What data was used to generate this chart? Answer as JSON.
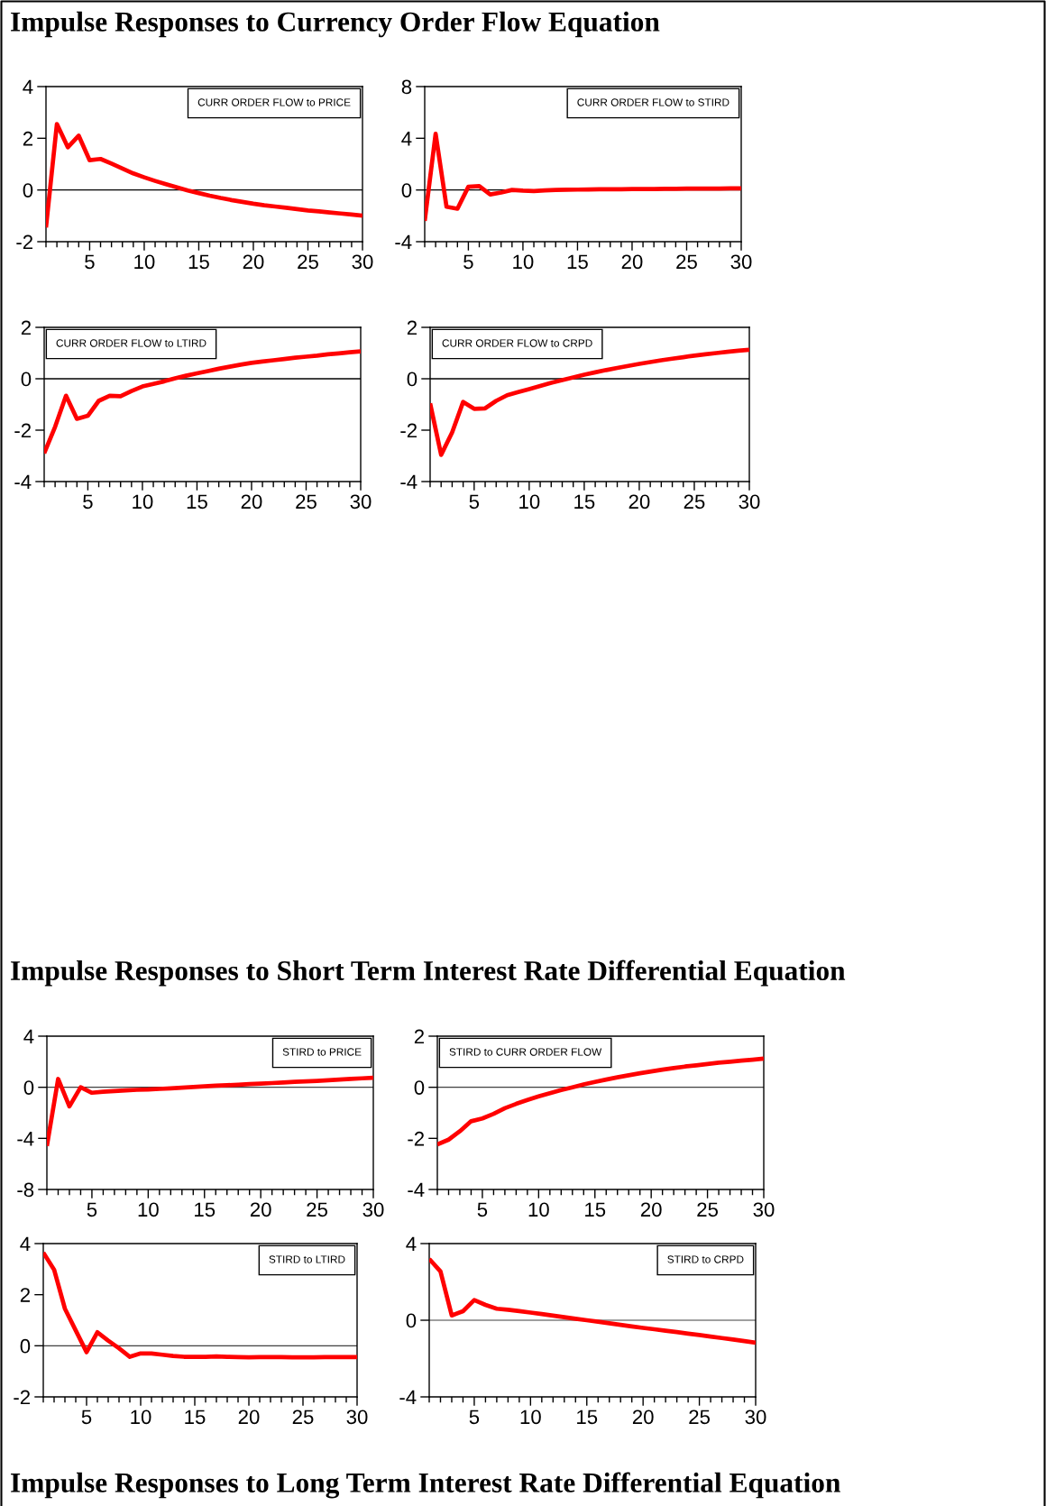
{
  "chart_data": [
    {
      "type": "other",
      "title": "Impulse Responses to Currency Order Flow Equation"
    },
    {
      "type": "line",
      "x": [
        1,
        2,
        3,
        4,
        5,
        6,
        7,
        8,
        9,
        10,
        11,
        12,
        13,
        14,
        15,
        16,
        17,
        18,
        19,
        20,
        21,
        22,
        23,
        24,
        25,
        26,
        27,
        28,
        29,
        30
      ],
      "series": [
        {
          "name": "CURR ORDER FLOW to PRICE",
          "color": "#ff0000",
          "values": [
            -1.45,
            2.55,
            1.65,
            2.1,
            1.15,
            1.2,
            1.02,
            0.83,
            0.64,
            0.49,
            0.35,
            0.22,
            0.1,
            -0.02,
            -0.12,
            -0.22,
            -0.31,
            -0.39,
            -0.46,
            -0.53,
            -0.59,
            -0.64,
            -0.69,
            -0.74,
            -0.79,
            -0.83,
            -0.87,
            -0.91,
            -0.95,
            -0.99
          ]
        }
      ],
      "xlim": [
        1,
        30
      ],
      "xticks": [
        {
          "value": 1,
          "label": null
        },
        {
          "value": 2,
          "label": null
        },
        {
          "value": 3,
          "label": null
        },
        {
          "value": 4,
          "label": null
        },
        5,
        {
          "value": 6,
          "label": null
        },
        {
          "value": 7,
          "label": null
        },
        {
          "value": 8,
          "label": null
        },
        {
          "value": 9,
          "label": null
        },
        10,
        {
          "value": 11,
          "label": null
        },
        {
          "value": 12,
          "label": null
        },
        {
          "value": 13,
          "label": null
        },
        {
          "value": 14,
          "label": null
        },
        15,
        {
          "value": 16,
          "label": null
        },
        {
          "value": 17,
          "label": null
        },
        {
          "value": 18,
          "label": null
        },
        {
          "value": 19,
          "label": null
        },
        20,
        {
          "value": 21,
          "label": null
        },
        {
          "value": 22,
          "label": null
        },
        {
          "value": 23,
          "label": null
        },
        {
          "value": 24,
          "label": null
        },
        25,
        {
          "value": 26,
          "label": null
        },
        {
          "value": 27,
          "label": null
        },
        {
          "value": 28,
          "label": null
        },
        {
          "value": 29,
          "label": null
        },
        30
      ],
      "ylim": [
        -2,
        4
      ],
      "yticks": [
        -2,
        0,
        2,
        4
      ],
      "ref_lines": [
        {
          "axis": "y",
          "value": 0,
          "color": "#000000"
        }
      ],
      "legend": "top right"
    },
    {
      "type": "line",
      "x": [
        1,
        2,
        3,
        4,
        5,
        6,
        7,
        8,
        9,
        10,
        11,
        12,
        13,
        14,
        15,
        16,
        17,
        18,
        19,
        20,
        21,
        22,
        23,
        24,
        25,
        26,
        27,
        28,
        29,
        30
      ],
      "series": [
        {
          "name": "CURR ORDER FLOW to STIRD",
          "color": "#ff0000",
          "values": [
            -2.4,
            4.35,
            -1.3,
            -1.45,
            0.25,
            0.3,
            -0.35,
            -0.2,
            0.0,
            -0.05,
            -0.08,
            -0.03,
            0.0,
            0.02,
            0.03,
            0.04,
            0.05,
            0.06,
            0.06,
            0.07,
            0.08,
            0.08,
            0.09,
            0.09,
            0.1,
            0.1,
            0.11,
            0.11,
            0.12,
            0.12
          ]
        }
      ],
      "xlim": [
        1,
        30
      ],
      "xticks": [
        {
          "value": 1,
          "label": null
        },
        {
          "value": 2,
          "label": null
        },
        {
          "value": 3,
          "label": null
        },
        {
          "value": 4,
          "label": null
        },
        5,
        {
          "value": 6,
          "label": null
        },
        {
          "value": 7,
          "label": null
        },
        {
          "value": 8,
          "label": null
        },
        {
          "value": 9,
          "label": null
        },
        10,
        {
          "value": 11,
          "label": null
        },
        {
          "value": 12,
          "label": null
        },
        {
          "value": 13,
          "label": null
        },
        {
          "value": 14,
          "label": null
        },
        15,
        {
          "value": 16,
          "label": null
        },
        {
          "value": 17,
          "label": null
        },
        {
          "value": 18,
          "label": null
        },
        {
          "value": 19,
          "label": null
        },
        20,
        {
          "value": 21,
          "label": null
        },
        {
          "value": 22,
          "label": null
        },
        {
          "value": 23,
          "label": null
        },
        {
          "value": 24,
          "label": null
        },
        25,
        {
          "value": 26,
          "label": null
        },
        {
          "value": 27,
          "label": null
        },
        {
          "value": 28,
          "label": null
        },
        {
          "value": 29,
          "label": null
        },
        30
      ],
      "ylim": [
        -4,
        8
      ],
      "yticks": [
        -4,
        0,
        4,
        8
      ],
      "ref_lines": [
        {
          "axis": "y",
          "value": 0,
          "color": "#000000"
        }
      ],
      "legend": "top right"
    },
    {
      "type": "line",
      "x": [
        1,
        2,
        3,
        4,
        5,
        6,
        7,
        8,
        9,
        10,
        11,
        12,
        13,
        14,
        15,
        16,
        17,
        18,
        19,
        20,
        21,
        22,
        23,
        24,
        25,
        26,
        27,
        28,
        29,
        30
      ],
      "series": [
        {
          "name": "CURR ORDER FLOW to LTIRD",
          "color": "#ff0000",
          "values": [
            -2.9,
            -1.87,
            -0.66,
            -1.56,
            -1.44,
            -0.86,
            -0.66,
            -0.68,
            -0.48,
            -0.3,
            -0.2,
            -0.1,
            0.02,
            0.12,
            0.21,
            0.3,
            0.39,
            0.47,
            0.55,
            0.62,
            0.67,
            0.72,
            0.77,
            0.82,
            0.86,
            0.9,
            0.95,
            0.99,
            1.03,
            1.07
          ]
        }
      ],
      "xlim": [
        1,
        30
      ],
      "xticks": [
        {
          "value": 1,
          "label": null
        },
        {
          "value": 2,
          "label": null
        },
        {
          "value": 3,
          "label": null
        },
        {
          "value": 4,
          "label": null
        },
        5,
        {
          "value": 6,
          "label": null
        },
        {
          "value": 7,
          "label": null
        },
        {
          "value": 8,
          "label": null
        },
        {
          "value": 9,
          "label": null
        },
        10,
        {
          "value": 11,
          "label": null
        },
        {
          "value": 12,
          "label": null
        },
        {
          "value": 13,
          "label": null
        },
        {
          "value": 14,
          "label": null
        },
        15,
        {
          "value": 16,
          "label": null
        },
        {
          "value": 17,
          "label": null
        },
        {
          "value": 18,
          "label": null
        },
        {
          "value": 19,
          "label": null
        },
        20,
        {
          "value": 21,
          "label": null
        },
        {
          "value": 22,
          "label": null
        },
        {
          "value": 23,
          "label": null
        },
        {
          "value": 24,
          "label": null
        },
        25,
        {
          "value": 26,
          "label": null
        },
        {
          "value": 27,
          "label": null
        },
        {
          "value": 28,
          "label": null
        },
        {
          "value": 29,
          "label": null
        },
        30
      ],
      "ylim": [
        -4,
        2
      ],
      "yticks": [
        -4,
        -2,
        0,
        2
      ],
      "ref_lines": [
        {
          "axis": "y",
          "value": 0,
          "color": "#000000"
        }
      ],
      "legend": "top left"
    },
    {
      "type": "line",
      "x": [
        1,
        2,
        3,
        4,
        5,
        6,
        7,
        8,
        9,
        10,
        11,
        12,
        13,
        14,
        15,
        16,
        17,
        18,
        19,
        20,
        21,
        22,
        23,
        24,
        25,
        26,
        27,
        28,
        29,
        30
      ],
      "series": [
        {
          "name": "CURR ORDER FLOW to CRPD",
          "color": "#ff0000",
          "values": [
            -0.96,
            -2.96,
            -2.09,
            -0.9,
            -1.17,
            -1.15,
            -0.86,
            -0.64,
            -0.52,
            -0.4,
            -0.28,
            -0.16,
            -0.05,
            0.05,
            0.16,
            0.25,
            0.34,
            0.42,
            0.5,
            0.58,
            0.65,
            0.72,
            0.78,
            0.84,
            0.9,
            0.95,
            1.0,
            1.05,
            1.09,
            1.13
          ]
        }
      ],
      "xlim": [
        1,
        30
      ],
      "xticks": [
        {
          "value": 1,
          "label": null
        },
        {
          "value": 2,
          "label": null
        },
        {
          "value": 3,
          "label": null
        },
        {
          "value": 4,
          "label": null
        },
        5,
        {
          "value": 6,
          "label": null
        },
        {
          "value": 7,
          "label": null
        },
        {
          "value": 8,
          "label": null
        },
        {
          "value": 9,
          "label": null
        },
        10,
        {
          "value": 11,
          "label": null
        },
        {
          "value": 12,
          "label": null
        },
        {
          "value": 13,
          "label": null
        },
        {
          "value": 14,
          "label": null
        },
        15,
        {
          "value": 16,
          "label": null
        },
        {
          "value": 17,
          "label": null
        },
        {
          "value": 18,
          "label": null
        },
        {
          "value": 19,
          "label": null
        },
        20,
        {
          "value": 21,
          "label": null
        },
        {
          "value": 22,
          "label": null
        },
        {
          "value": 23,
          "label": null
        },
        {
          "value": 24,
          "label": null
        },
        25,
        {
          "value": 26,
          "label": null
        },
        {
          "value": 27,
          "label": null
        },
        {
          "value": 28,
          "label": null
        },
        {
          "value": 29,
          "label": null
        },
        30
      ],
      "ylim": [
        -4,
        2
      ],
      "yticks": [
        -4,
        -2,
        0,
        2
      ],
      "ref_lines": [
        {
          "axis": "y",
          "value": 0,
          "color": "#000000"
        }
      ],
      "legend": "top left"
    },
    {
      "type": "other",
      "title": "Impulse Responses to Short Term Interest Rate Differential Equation"
    },
    {
      "type": "line",
      "x": [
        1,
        2,
        3,
        4,
        5,
        6,
        7,
        8,
        9,
        10,
        11,
        12,
        13,
        14,
        15,
        16,
        17,
        18,
        19,
        20,
        21,
        22,
        23,
        24,
        25,
        26,
        27,
        28,
        29,
        30
      ],
      "series": [
        {
          "name": "STIRD to PRICE",
          "color": "#ff0000",
          "values": [
            -4.6,
            0.65,
            -1.5,
            0.0,
            -0.43,
            -0.35,
            -0.3,
            -0.25,
            -0.2,
            -0.18,
            -0.13,
            -0.08,
            -0.03,
            0.02,
            0.07,
            0.12,
            0.16,
            0.2,
            0.25,
            0.29,
            0.33,
            0.38,
            0.42,
            0.46,
            0.5,
            0.55,
            0.6,
            0.65,
            0.7,
            0.75
          ]
        }
      ],
      "xlim": [
        1,
        30
      ],
      "xticks": [
        {
          "value": 1,
          "label": null
        },
        {
          "value": 2,
          "label": null
        },
        {
          "value": 3,
          "label": null
        },
        {
          "value": 4,
          "label": null
        },
        5,
        {
          "value": 6,
          "label": null
        },
        {
          "value": 7,
          "label": null
        },
        {
          "value": 8,
          "label": null
        },
        {
          "value": 9,
          "label": null
        },
        10,
        {
          "value": 11,
          "label": null
        },
        {
          "value": 12,
          "label": null
        },
        {
          "value": 13,
          "label": null
        },
        {
          "value": 14,
          "label": null
        },
        15,
        {
          "value": 16,
          "label": null
        },
        {
          "value": 17,
          "label": null
        },
        {
          "value": 18,
          "label": null
        },
        {
          "value": 19,
          "label": null
        },
        20,
        {
          "value": 21,
          "label": null
        },
        {
          "value": 22,
          "label": null
        },
        {
          "value": 23,
          "label": null
        },
        {
          "value": 24,
          "label": null
        },
        25,
        {
          "value": 26,
          "label": null
        },
        {
          "value": 27,
          "label": null
        },
        {
          "value": 28,
          "label": null
        },
        {
          "value": 29,
          "label": null
        },
        30
      ],
      "ylim": [
        -8,
        4
      ],
      "yticks": [
        -8,
        -4,
        0,
        4
      ],
      "ref_lines": [
        {
          "axis": "y",
          "value": 0,
          "color": "#404040"
        }
      ],
      "legend": "top right"
    },
    {
      "type": "line",
      "x": [
        1,
        2,
        3,
        4,
        5,
        6,
        7,
        8,
        9,
        10,
        11,
        12,
        13,
        14,
        15,
        16,
        17,
        18,
        19,
        20,
        21,
        22,
        23,
        24,
        25,
        26,
        27,
        28,
        29,
        30
      ],
      "series": [
        {
          "name": "STIRD to CURR ORDER FLOW",
          "color": "#ff0000",
          "values": [
            -2.24,
            -2.05,
            -1.72,
            -1.33,
            -1.22,
            -1.04,
            -0.82,
            -0.65,
            -0.5,
            -0.36,
            -0.23,
            -0.11,
            0.0,
            0.11,
            0.21,
            0.3,
            0.39,
            0.47,
            0.55,
            0.62,
            0.69,
            0.75,
            0.81,
            0.86,
            0.91,
            0.96,
            1.0,
            1.04,
            1.08,
            1.12
          ]
        }
      ],
      "xlim": [
        1,
        30
      ],
      "xticks": [
        {
          "value": 1,
          "label": null
        },
        {
          "value": 2,
          "label": null
        },
        {
          "value": 3,
          "label": null
        },
        {
          "value": 4,
          "label": null
        },
        5,
        {
          "value": 6,
          "label": null
        },
        {
          "value": 7,
          "label": null
        },
        {
          "value": 8,
          "label": null
        },
        {
          "value": 9,
          "label": null
        },
        10,
        {
          "value": 11,
          "label": null
        },
        {
          "value": 12,
          "label": null
        },
        {
          "value": 13,
          "label": null
        },
        {
          "value": 14,
          "label": null
        },
        15,
        {
          "value": 16,
          "label": null
        },
        {
          "value": 17,
          "label": null
        },
        {
          "value": 18,
          "label": null
        },
        {
          "value": 19,
          "label": null
        },
        20,
        {
          "value": 21,
          "label": null
        },
        {
          "value": 22,
          "label": null
        },
        {
          "value": 23,
          "label": null
        },
        {
          "value": 24,
          "label": null
        },
        25,
        {
          "value": 26,
          "label": null
        },
        {
          "value": 27,
          "label": null
        },
        {
          "value": 28,
          "label": null
        },
        {
          "value": 29,
          "label": null
        },
        30
      ],
      "ylim": [
        -4,
        2
      ],
      "yticks": [
        -4,
        -2,
        0,
        2
      ],
      "ref_lines": [
        {
          "axis": "y",
          "value": 0,
          "color": "#404040"
        }
      ],
      "legend": "top left"
    },
    {
      "type": "line",
      "x": [
        1,
        2,
        3,
        4,
        5,
        6,
        7,
        8,
        9,
        10,
        11,
        12,
        13,
        14,
        15,
        16,
        17,
        18,
        19,
        20,
        21,
        22,
        23,
        24,
        25,
        26,
        27,
        28,
        29,
        30
      ],
      "series": [
        {
          "name": "STIRD to LTIRD",
          "color": "#ff0000",
          "values": [
            3.65,
            2.98,
            1.45,
            0.6,
            -0.25,
            0.53,
            0.2,
            -0.1,
            -0.43,
            -0.3,
            -0.3,
            -0.35,
            -0.4,
            -0.43,
            -0.43,
            -0.43,
            -0.42,
            -0.43,
            -0.44,
            -0.45,
            -0.44,
            -0.44,
            -0.44,
            -0.45,
            -0.45,
            -0.45,
            -0.44,
            -0.44,
            -0.44,
            -0.44
          ]
        }
      ],
      "xlim": [
        1,
        30
      ],
      "xticks": [
        {
          "value": 1,
          "label": null
        },
        {
          "value": 2,
          "label": null
        },
        {
          "value": 3,
          "label": null
        },
        {
          "value": 4,
          "label": null
        },
        5,
        {
          "value": 6,
          "label": null
        },
        {
          "value": 7,
          "label": null
        },
        {
          "value": 8,
          "label": null
        },
        {
          "value": 9,
          "label": null
        },
        10,
        {
          "value": 11,
          "label": null
        },
        {
          "value": 12,
          "label": null
        },
        {
          "value": 13,
          "label": null
        },
        {
          "value": 14,
          "label": null
        },
        15,
        {
          "value": 16,
          "label": null
        },
        {
          "value": 17,
          "label": null
        },
        {
          "value": 18,
          "label": null
        },
        {
          "value": 19,
          "label": null
        },
        20,
        {
          "value": 21,
          "label": null
        },
        {
          "value": 22,
          "label": null
        },
        {
          "value": 23,
          "label": null
        },
        {
          "value": 24,
          "label": null
        },
        25,
        {
          "value": 26,
          "label": null
        },
        {
          "value": 27,
          "label": null
        },
        {
          "value": 28,
          "label": null
        },
        {
          "value": 29,
          "label": null
        },
        30
      ],
      "ylim": [
        -2,
        4
      ],
      "yticks": [
        -2,
        0,
        2,
        4
      ],
      "ref_lines": [
        {
          "axis": "y",
          "value": 0,
          "color": "#404040"
        }
      ],
      "legend": "top right"
    },
    {
      "type": "line",
      "x": [
        1,
        2,
        3,
        4,
        5,
        6,
        7,
        8,
        9,
        10,
        11,
        12,
        13,
        14,
        15,
        16,
        17,
        18,
        19,
        20,
        21,
        22,
        23,
        24,
        25,
        26,
        27,
        28,
        29,
        30
      ],
      "series": [
        {
          "name": "STIRD to CRPD",
          "color": "#ff0000",
          "values": [
            3.2,
            2.55,
            0.25,
            0.47,
            1.05,
            0.8,
            0.6,
            0.55,
            0.48,
            0.4,
            0.32,
            0.24,
            0.16,
            0.08,
            0.0,
            -0.08,
            -0.16,
            -0.24,
            -0.32,
            -0.4,
            -0.47,
            -0.55,
            -0.62,
            -0.7,
            -0.77,
            -0.85,
            -0.93,
            -1.01,
            -1.09,
            -1.17
          ]
        }
      ],
      "xlim": [
        1,
        30
      ],
      "xticks": [
        {
          "value": 1,
          "label": null
        },
        {
          "value": 2,
          "label": null
        },
        {
          "value": 3,
          "label": null
        },
        {
          "value": 4,
          "label": null
        },
        5,
        {
          "value": 6,
          "label": null
        },
        {
          "value": 7,
          "label": null
        },
        {
          "value": 8,
          "label": null
        },
        {
          "value": 9,
          "label": null
        },
        10,
        {
          "value": 11,
          "label": null
        },
        {
          "value": 12,
          "label": null
        },
        {
          "value": 13,
          "label": null
        },
        {
          "value": 14,
          "label": null
        },
        15,
        {
          "value": 16,
          "label": null
        },
        {
          "value": 17,
          "label": null
        },
        {
          "value": 18,
          "label": null
        },
        {
          "value": 19,
          "label": null
        },
        20,
        {
          "value": 21,
          "label": null
        },
        {
          "value": 22,
          "label": null
        },
        {
          "value": 23,
          "label": null
        },
        {
          "value": 24,
          "label": null
        },
        25,
        {
          "value": 26,
          "label": null
        },
        {
          "value": 27,
          "label": null
        },
        {
          "value": 28,
          "label": null
        },
        {
          "value": 29,
          "label": null
        },
        30
      ],
      "ylim": [
        -4,
        4
      ],
      "yticks": [
        -4,
        0,
        4
      ],
      "ref_lines": [
        {
          "axis": "y",
          "value": 0,
          "color": "#404040"
        }
      ],
      "legend": "top right"
    },
    {
      "type": "other",
      "title": "Impulse Responses to Long Term Interest Rate Differential Equation"
    }
  ]
}
